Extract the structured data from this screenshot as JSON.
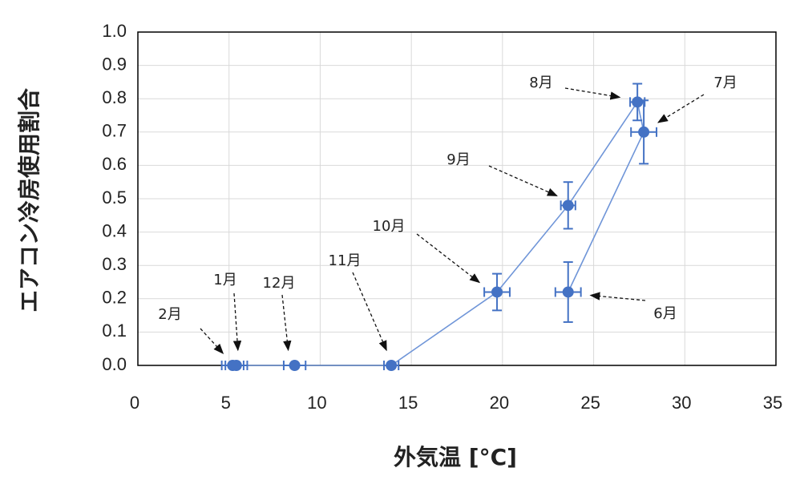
{
  "chart_data": {
    "type": "scatter",
    "x_label": "外気温 [°C]",
    "y_label": "エアコン冷房使用割合",
    "x": [
      23.6,
      27.75,
      27.4,
      23.6,
      19.7,
      13.9,
      8.6,
      5.4,
      5.2
    ],
    "series": [
      {
        "name": "エアコン冷房使用割合",
        "color": "#4472c4",
        "values": [
          0.22,
          0.7,
          0.79,
          0.48,
          0.22,
          0,
          0,
          0,
          0
        ],
        "yerr": [
          0.09,
          0.095,
          0.055,
          0.07,
          0.055,
          0,
          0,
          0,
          0
        ],
        "xerr": [
          0.7,
          0.7,
          0.4,
          0.4,
          0.7,
          0.4,
          0.6,
          0.6,
          0.6
        ],
        "labels": [
          "6月",
          "7月",
          "8月",
          "9月",
          "10月",
          "11月",
          "12月",
          "1月",
          "2月"
        ]
      }
    ],
    "xlim": [
      0,
      35
    ],
    "xticks": [
      0,
      5,
      10,
      15,
      20,
      25,
      30,
      35
    ],
    "ylim": [
      0,
      1
    ],
    "yticks": [
      {
        "value": 0,
        "label": "0.0"
      },
      0.1,
      0.2,
      0.3,
      0.4,
      0.5,
      0.6,
      0.7,
      0.8,
      0.9,
      {
        "value": 1,
        "label": "1.0"
      }
    ],
    "grid": true
  }
}
